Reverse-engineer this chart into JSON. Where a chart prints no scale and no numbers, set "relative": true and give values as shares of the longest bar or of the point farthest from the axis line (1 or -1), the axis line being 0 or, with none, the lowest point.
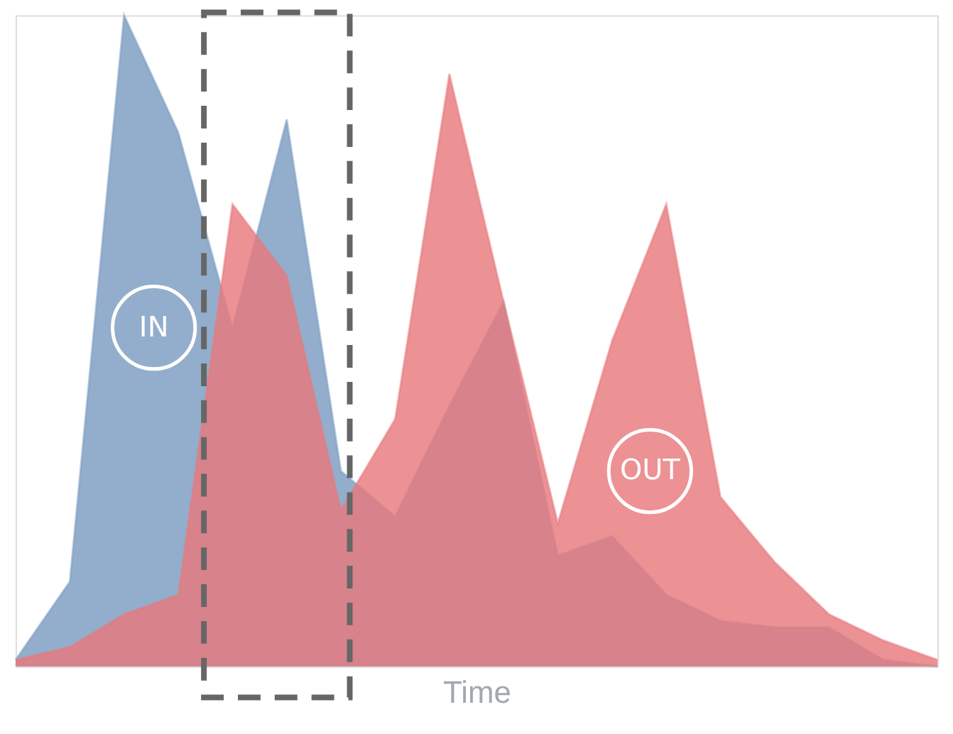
{
  "chart_data": {
    "type": "area",
    "relative": true,
    "xlabel": "Time",
    "legend": false,
    "categories": [
      null,
      null,
      null,
      null,
      null,
      null,
      null,
      null,
      null,
      null,
      null,
      null,
      null,
      null,
      null,
      null,
      null,
      null
    ],
    "series": [
      {
        "name": "IN",
        "color": "#7a9cc1",
        "values": [
          0.01,
          0.13,
          1,
          0.82,
          0.52,
          0.84,
          0.3,
          0.23,
          0.4,
          0.56,
          0.17,
          0.2,
          0.11,
          0.07,
          0.06,
          0.06,
          0.01,
          0
        ]
      },
      {
        "name": "OUT",
        "color": "#e8797d",
        "values": [
          0.01,
          0.03,
          0.08,
          0.11,
          0.71,
          0.6,
          0.24,
          0.38,
          0.91,
          0.56,
          0.22,
          0.5,
          0.71,
          0.26,
          0.16,
          0.08,
          0.04,
          0.01
        ]
      }
    ]
  }
}
